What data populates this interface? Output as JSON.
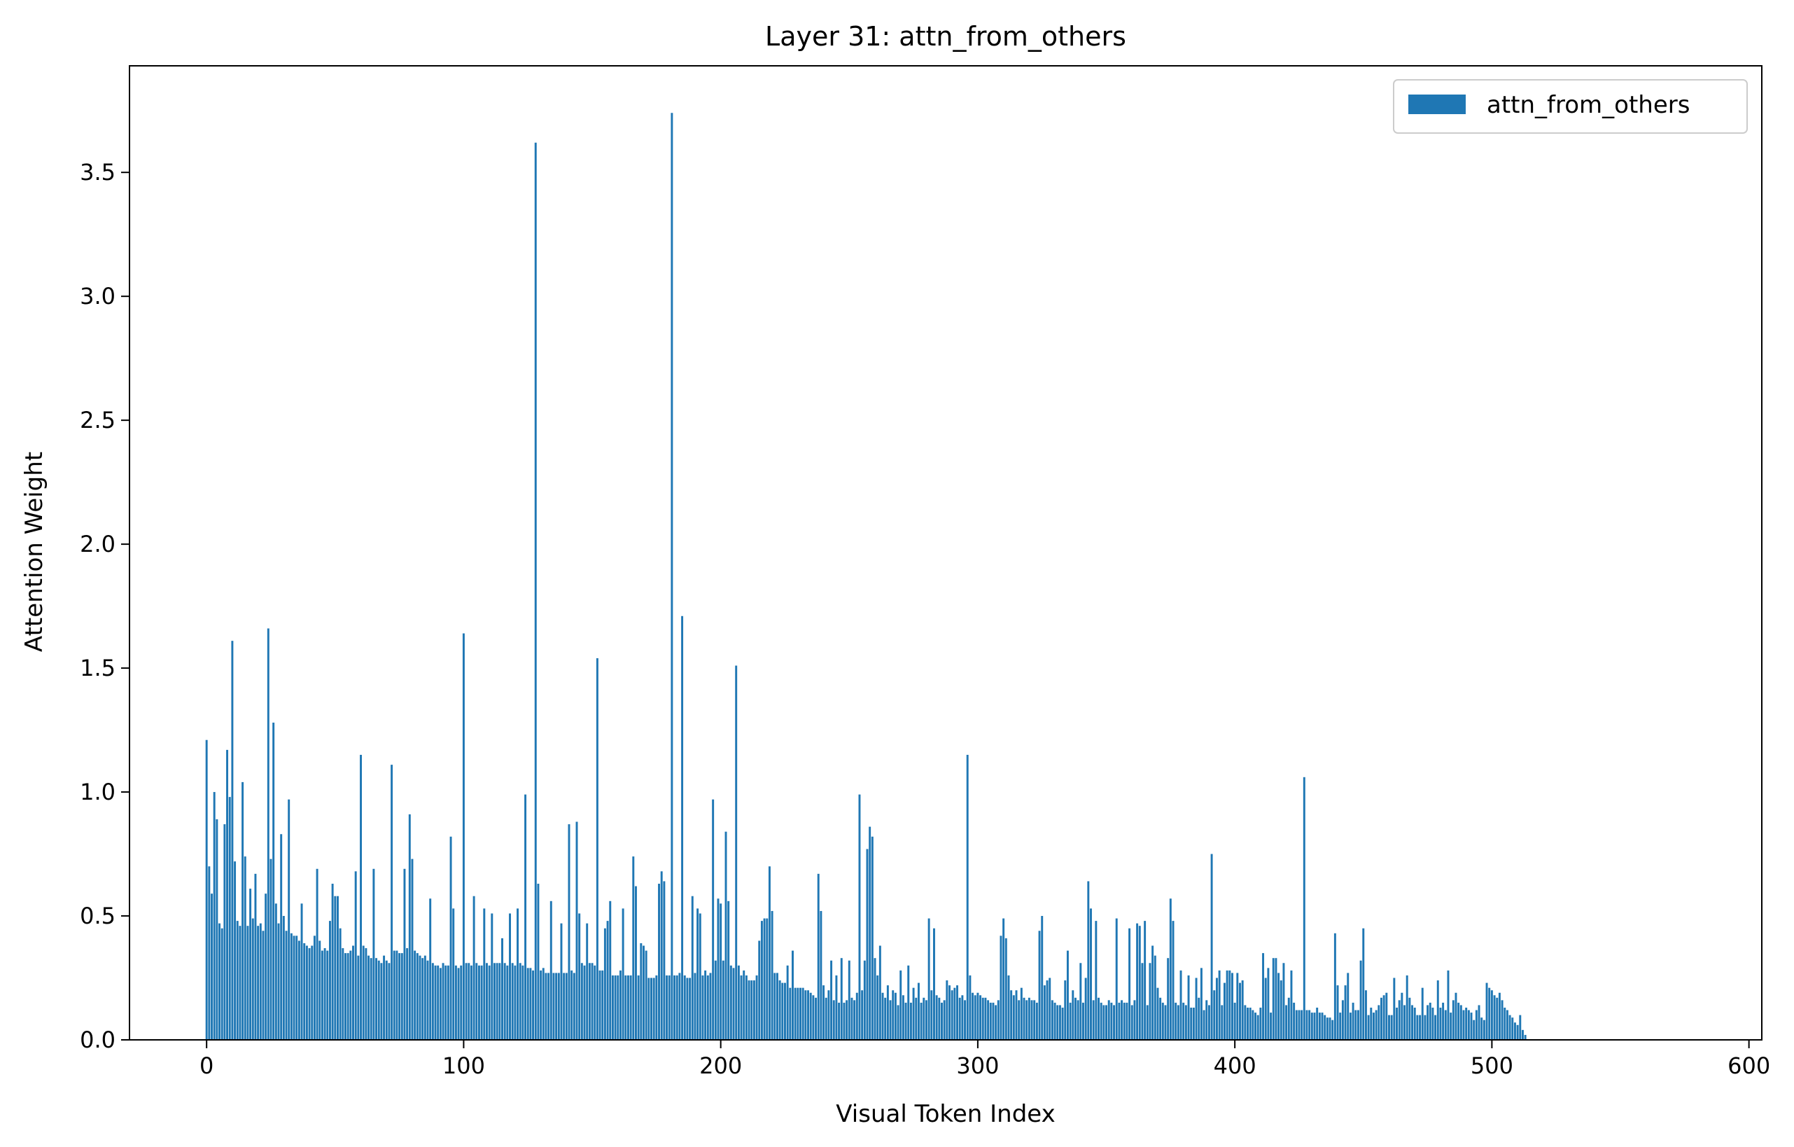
{
  "chart_data": {
    "type": "bar",
    "title": "Layer 31: attn_from_others",
    "xlabel": "Visual Token Index",
    "ylabel": "Attention Weight",
    "xlim": [
      -30,
      605
    ],
    "ylim": [
      0,
      3.93
    ],
    "xticks": [
      0,
      100,
      200,
      300,
      400,
      500,
      600
    ],
    "xtick_labels": [
      "0",
      "100",
      "200",
      "300",
      "400",
      "500",
      "600"
    ],
    "yticks": [
      0.0,
      0.5,
      1.0,
      1.5,
      2.0,
      2.5,
      3.0,
      3.5
    ],
    "ytick_labels": [
      "0.0",
      "0.5",
      "1.0",
      "1.5",
      "2.0",
      "2.5",
      "3.0",
      "3.5"
    ],
    "grid": false,
    "legend_position": "top-right",
    "color": "#1f77b4",
    "series": [
      {
        "name": "attn_from_others",
        "x_start": 0,
        "values": [
          1.21,
          0.7,
          0.59,
          1.0,
          0.89,
          0.47,
          0.45,
          0.87,
          1.17,
          0.98,
          1.61,
          0.72,
          0.48,
          0.46,
          1.04,
          0.74,
          0.46,
          0.61,
          0.49,
          0.67,
          0.46,
          0.47,
          0.44,
          0.59,
          1.66,
          0.73,
          1.28,
          0.55,
          0.47,
          0.83,
          0.5,
          0.44,
          0.97,
          0.43,
          0.42,
          0.42,
          0.4,
          0.55,
          0.39,
          0.38,
          0.37,
          0.38,
          0.42,
          0.69,
          0.4,
          0.36,
          0.37,
          0.36,
          0.48,
          0.63,
          0.58,
          0.58,
          0.45,
          0.37,
          0.35,
          0.35,
          0.36,
          0.38,
          0.68,
          0.34,
          1.15,
          0.38,
          0.37,
          0.34,
          0.33,
          0.69,
          0.33,
          0.32,
          0.31,
          0.34,
          0.32,
          0.31,
          1.11,
          0.36,
          0.36,
          0.35,
          0.35,
          0.69,
          0.37,
          0.91,
          0.73,
          0.36,
          0.35,
          0.34,
          0.33,
          0.34,
          0.32,
          0.57,
          0.31,
          0.3,
          0.3,
          0.29,
          0.31,
          0.3,
          0.3,
          0.82,
          0.53,
          0.3,
          0.29,
          0.3,
          1.64,
          0.31,
          0.31,
          0.3,
          0.58,
          0.31,
          0.3,
          0.3,
          0.53,
          0.31,
          0.3,
          0.51,
          0.31,
          0.31,
          0.31,
          0.41,
          0.31,
          0.3,
          0.51,
          0.31,
          0.3,
          0.53,
          0.31,
          0.3,
          0.99,
          0.29,
          0.29,
          0.28,
          3.62,
          0.63,
          0.28,
          0.29,
          0.27,
          0.27,
          0.56,
          0.27,
          0.27,
          0.27,
          0.47,
          0.27,
          0.27,
          0.87,
          0.28,
          0.27,
          0.88,
          0.51,
          0.31,
          0.3,
          0.47,
          0.31,
          0.31,
          0.3,
          1.54,
          0.28,
          0.28,
          0.45,
          0.48,
          0.56,
          0.26,
          0.26,
          0.26,
          0.28,
          0.53,
          0.26,
          0.26,
          0.26,
          0.74,
          0.62,
          0.26,
          0.39,
          0.38,
          0.36,
          0.25,
          0.25,
          0.25,
          0.26,
          0.63,
          0.68,
          0.64,
          0.26,
          0.26,
          3.74,
          0.26,
          0.26,
          0.27,
          1.71,
          0.26,
          0.25,
          0.25,
          0.58,
          0.27,
          0.53,
          0.51,
          0.26,
          0.28,
          0.26,
          0.27,
          0.97,
          0.32,
          0.57,
          0.55,
          0.32,
          0.84,
          0.56,
          0.3,
          0.29,
          1.51,
          0.3,
          0.26,
          0.28,
          0.26,
          0.24,
          0.24,
          0.24,
          0.26,
          0.4,
          0.48,
          0.49,
          0.49,
          0.7,
          0.52,
          0.27,
          0.27,
          0.24,
          0.23,
          0.23,
          0.3,
          0.21,
          0.36,
          0.21,
          0.21,
          0.21,
          0.21,
          0.2,
          0.2,
          0.19,
          0.18,
          0.17,
          0.67,
          0.52,
          0.22,
          0.17,
          0.2,
          0.32,
          0.16,
          0.26,
          0.15,
          0.33,
          0.15,
          0.16,
          0.32,
          0.17,
          0.16,
          0.19,
          0.99,
          0.2,
          0.32,
          0.77,
          0.86,
          0.82,
          0.33,
          0.26,
          0.38,
          0.19,
          0.17,
          0.22,
          0.16,
          0.2,
          0.19,
          0.14,
          0.28,
          0.18,
          0.15,
          0.3,
          0.15,
          0.21,
          0.17,
          0.23,
          0.15,
          0.17,
          0.16,
          0.49,
          0.2,
          0.45,
          0.18,
          0.17,
          0.15,
          0.16,
          0.24,
          0.22,
          0.2,
          0.21,
          0.22,
          0.17,
          0.18,
          0.16,
          1.15,
          0.26,
          0.19,
          0.18,
          0.19,
          0.18,
          0.17,
          0.17,
          0.16,
          0.15,
          0.15,
          0.14,
          0.16,
          0.42,
          0.49,
          0.41,
          0.26,
          0.2,
          0.18,
          0.2,
          0.16,
          0.21,
          0.17,
          0.16,
          0.17,
          0.16,
          0.16,
          0.15,
          0.44,
          0.5,
          0.22,
          0.24,
          0.25,
          0.16,
          0.15,
          0.14,
          0.14,
          0.13,
          0.24,
          0.36,
          0.15,
          0.2,
          0.17,
          0.16,
          0.31,
          0.15,
          0.25,
          0.64,
          0.53,
          0.16,
          0.48,
          0.17,
          0.15,
          0.14,
          0.14,
          0.16,
          0.15,
          0.14,
          0.49,
          0.15,
          0.16,
          0.15,
          0.15,
          0.45,
          0.14,
          0.16,
          0.47,
          0.46,
          0.31,
          0.48,
          0.14,
          0.31,
          0.38,
          0.34,
          0.21,
          0.17,
          0.15,
          0.14,
          0.33,
          0.57,
          0.48,
          0.15,
          0.14,
          0.28,
          0.15,
          0.14,
          0.26,
          0.13,
          0.13,
          0.25,
          0.17,
          0.29,
          0.12,
          0.16,
          0.14,
          0.75,
          0.2,
          0.25,
          0.28,
          0.14,
          0.23,
          0.28,
          0.28,
          0.27,
          0.15,
          0.27,
          0.23,
          0.24,
          0.14,
          0.13,
          0.13,
          0.12,
          0.11,
          0.1,
          0.13,
          0.35,
          0.25,
          0.29,
          0.11,
          0.33,
          0.33,
          0.27,
          0.24,
          0.31,
          0.14,
          0.17,
          0.28,
          0.15,
          0.12,
          0.12,
          0.12,
          1.06,
          0.12,
          0.12,
          0.11,
          0.11,
          0.13,
          0.11,
          0.11,
          0.1,
          0.09,
          0.09,
          0.08,
          0.43,
          0.22,
          0.11,
          0.16,
          0.22,
          0.27,
          0.11,
          0.15,
          0.12,
          0.12,
          0.32,
          0.45,
          0.2,
          0.1,
          0.13,
          0.11,
          0.12,
          0.14,
          0.17,
          0.18,
          0.19,
          0.1,
          0.1,
          0.25,
          0.13,
          0.16,
          0.19,
          0.14,
          0.26,
          0.17,
          0.14,
          0.13,
          0.1,
          0.1,
          0.21,
          0.1,
          0.14,
          0.15,
          0.13,
          0.1,
          0.24,
          0.13,
          0.15,
          0.12,
          0.28,
          0.11,
          0.16,
          0.19,
          0.15,
          0.14,
          0.12,
          0.13,
          0.12,
          0.11,
          0.08,
          0.12,
          0.14,
          0.09,
          0.08,
          0.23,
          0.21,
          0.2,
          0.18,
          0.17,
          0.19,
          0.16,
          0.13,
          0.12,
          0.1,
          0.09,
          0.07,
          0.06,
          0.1,
          0.04,
          0.02
        ]
      }
    ]
  }
}
